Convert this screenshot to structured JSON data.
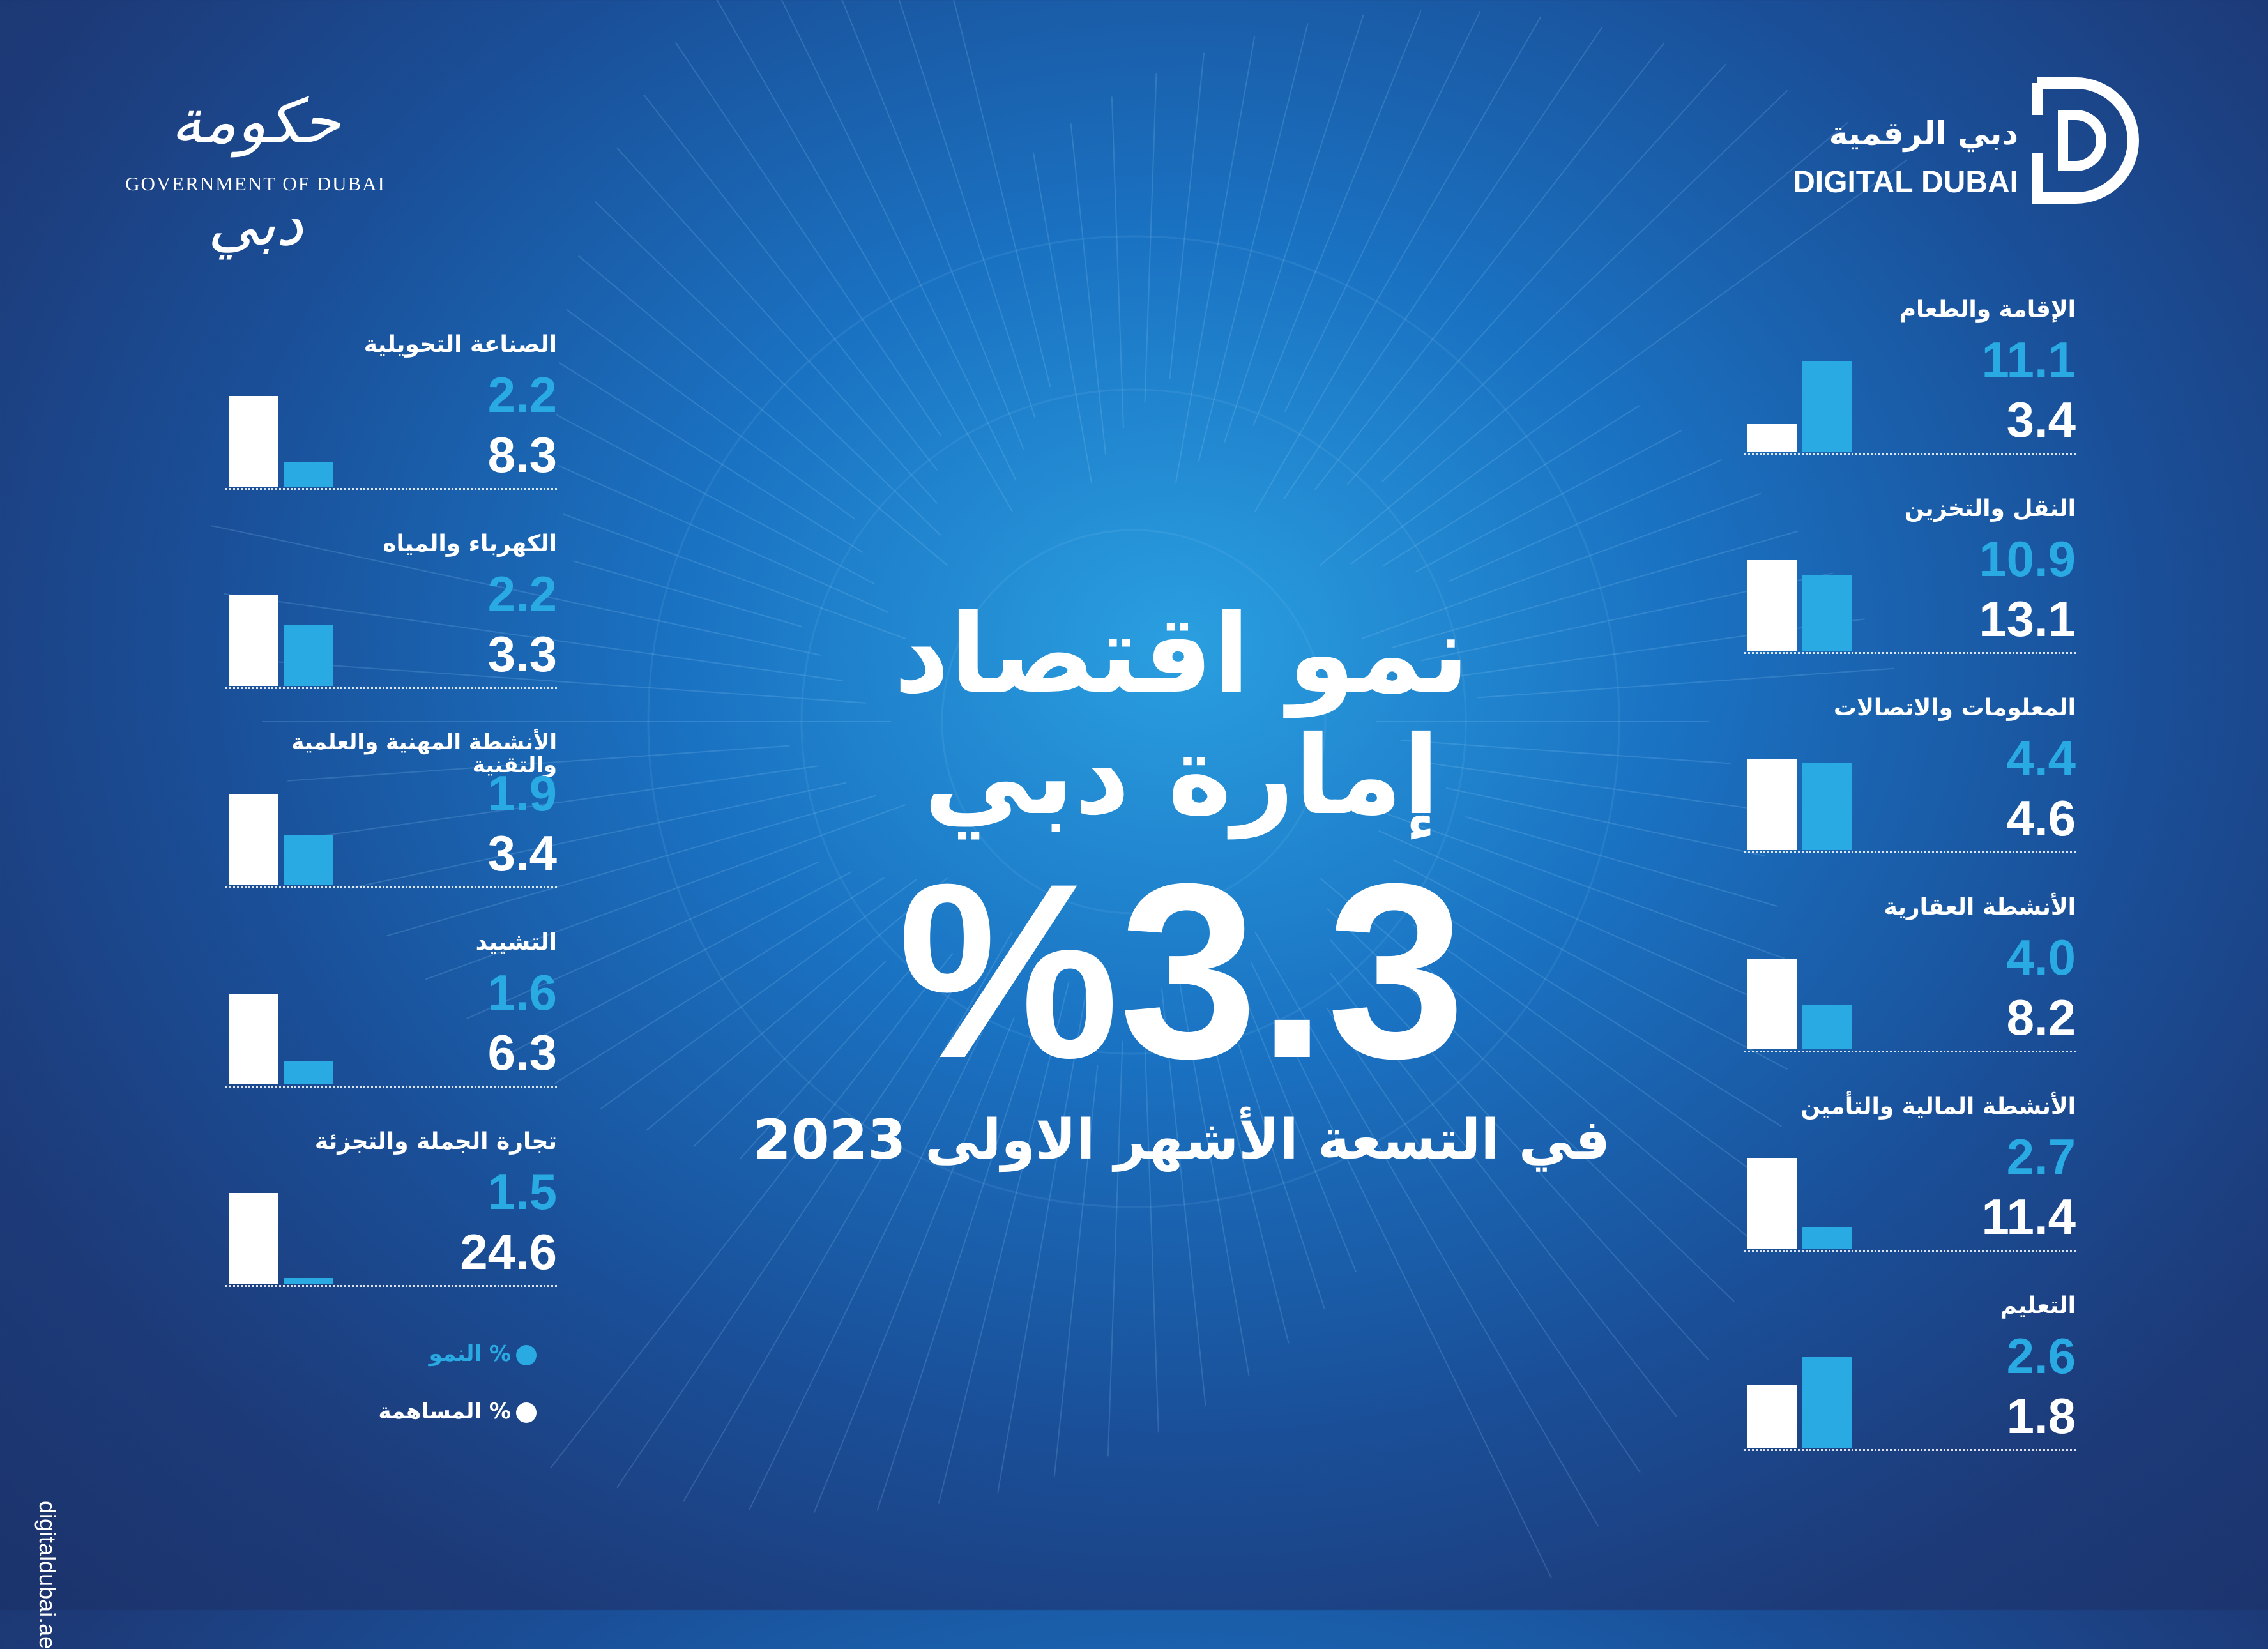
{
  "logos": {
    "government_arabic": "حكومة دبي",
    "government_english": "GOVERNMENT OF DUBAI",
    "digital_dubai_arabic": "دبي الرقمية",
    "digital_dubai_english": "DIGITAL DUBAI"
  },
  "headline": {
    "line1": "نمو اقتصاد",
    "line2": "إمارة دبي",
    "value": "%3.3",
    "subtitle": "في التسعة الأشهر الاولى 2023"
  },
  "legend": {
    "growth_label": "% النمو",
    "share_label": "% المساهمة"
  },
  "website": "digitaldubai.ae",
  "colors": {
    "growth": "#29aae3",
    "share": "#ffffff",
    "background": "#1a5aa8"
  },
  "chart_data": {
    "type": "bar",
    "title": "نمو اقتصاد إمارة دبي",
    "series": [
      {
        "name": "% النمو",
        "color": "#29aae3"
      },
      {
        "name": "% المساهمة",
        "color": "#ffffff"
      }
    ],
    "left_sectors": [
      {
        "label": "الصناعة التحويلية",
        "growth": "2.2",
        "share": "8.3"
      },
      {
        "label": "الكهرباء والمياه",
        "growth": "2.2",
        "share": "3.3"
      },
      {
        "label": "الأنشطة المهنية والعلمية والتقنية",
        "growth": "1.9",
        "share": "3.4"
      },
      {
        "label": "التشييد",
        "growth": "1.6",
        "share": "6.3"
      },
      {
        "label": "تجارة الجملة والتجزئة",
        "growth": "1.5",
        "share": "24.6"
      }
    ],
    "right_sectors": [
      {
        "label": "الإقامة والطعام",
        "growth": "11.1",
        "share": "3.4"
      },
      {
        "label": "النقل والتخزين",
        "growth": "10.9",
        "share": "13.1"
      },
      {
        "label": "المعلومات والاتصالات",
        "growth": "4.4",
        "share": "4.6"
      },
      {
        "label": "الأنشطة العقارية",
        "growth": "4.0",
        "share": "8.2"
      },
      {
        "label": "الأنشطة المالية والتأمين",
        "growth": "2.7",
        "share": "11.4"
      },
      {
        "label": "التعليم",
        "growth": "2.6",
        "share": "1.8"
      }
    ]
  }
}
